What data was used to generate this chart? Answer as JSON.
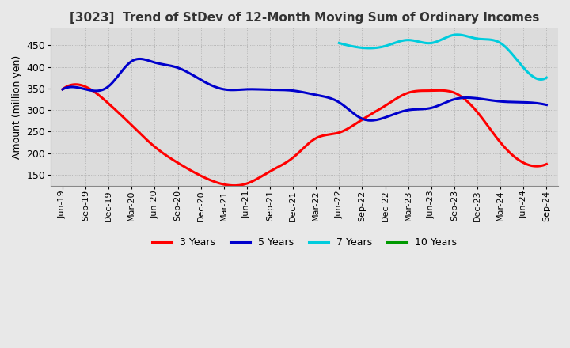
{
  "title": "[3023]  Trend of StDev of 12-Month Moving Sum of Ordinary Incomes",
  "ylabel": "Amount (million yen)",
  "ylim": [
    125,
    490
  ],
  "yticks": [
    150,
    200,
    250,
    300,
    350,
    400,
    450
  ],
  "line_colors": {
    "3y": "#ff0000",
    "5y": "#0000cc",
    "7y": "#00ccdd",
    "10y": "#009900"
  },
  "legend": [
    "3 Years",
    "5 Years",
    "7 Years",
    "10 Years"
  ],
  "x_labels": [
    "Jun-19",
    "Sep-19",
    "Dec-19",
    "Mar-20",
    "Jun-20",
    "Sep-20",
    "Dec-20",
    "Mar-21",
    "Jun-21",
    "Sep-21",
    "Dec-21",
    "Mar-22",
    "Jun-22",
    "Sep-22",
    "Dec-22",
    "Mar-23",
    "Jun-23",
    "Sep-23",
    "Dec-23",
    "Mar-24",
    "Jun-24",
    "Sep-24"
  ],
  "series_3y": [
    348,
    354,
    315,
    265,
    215,
    178,
    148,
    128,
    130,
    158,
    190,
    235,
    248,
    278,
    310,
    340,
    345,
    340,
    295,
    225,
    178,
    175
  ],
  "series_5y": [
    348,
    348,
    355,
    413,
    410,
    398,
    370,
    348,
    348,
    347,
    345,
    335,
    318,
    280,
    283,
    300,
    305,
    325,
    327,
    320,
    318,
    312
  ],
  "series_7y": [
    null,
    null,
    null,
    null,
    null,
    null,
    null,
    null,
    null,
    null,
    null,
    null,
    455,
    444,
    448,
    462,
    455,
    474,
    465,
    455,
    398,
    375
  ],
  "series_10y": [
    null,
    null,
    null,
    null,
    null,
    null,
    null,
    null,
    null,
    null,
    null,
    null,
    null,
    null,
    null,
    null,
    null,
    null,
    null,
    null,
    null,
    null
  ],
  "background_color": "#e8e8e8",
  "grid_color": "#aaaaaa",
  "plot_bg": "#dcdcdc"
}
